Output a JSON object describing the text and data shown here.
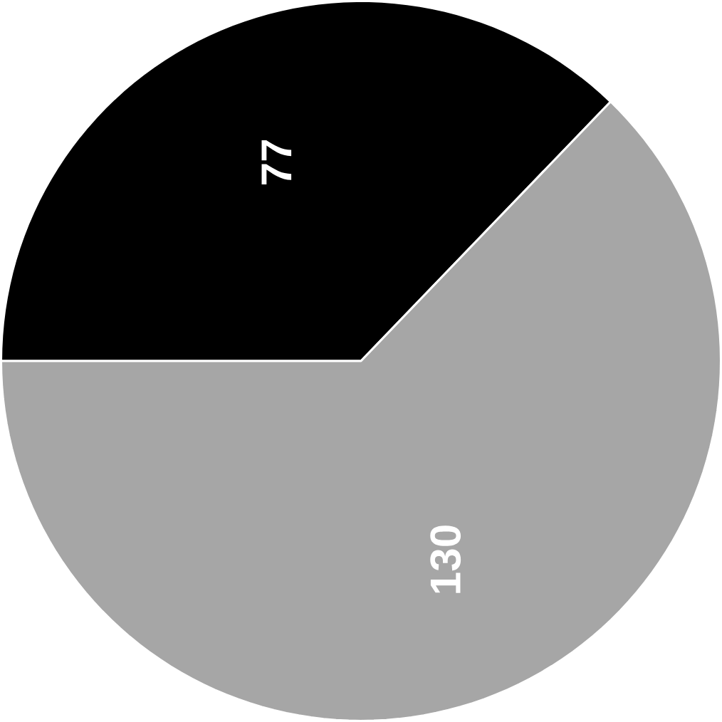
{
  "chart_data": {
    "type": "pie",
    "categories": [
      null,
      null
    ],
    "values": [
      77,
      130
    ],
    "colors": [
      "#000000",
      "#a6a6a6"
    ],
    "data_labels": true
  }
}
